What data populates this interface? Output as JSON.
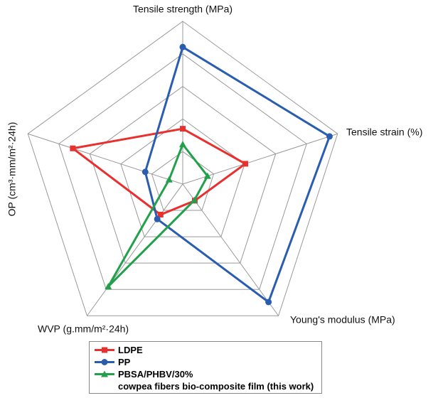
{
  "chart_data": {
    "type": "radar",
    "axes": [
      "Tensile strength (MPa)",
      "Tensile strain (%)",
      "Young's modulus (MPa)",
      "WVP (g.mm/m²·24h)",
      "OP (cm³·mm/m²·24h)"
    ],
    "rlim": [
      0,
      5
    ],
    "rticks": [
      1,
      2,
      3,
      4,
      5
    ],
    "grid": true,
    "series": [
      {
        "name": "LDPE",
        "color": "#e8302f",
        "marker": "square",
        "values": [
          1.7,
          2.02,
          0.63,
          1.16,
          3.55
        ]
      },
      {
        "name": "PP",
        "color": "#2a5db0",
        "marker": "circle",
        "values": [
          4.21,
          4.74,
          4.48,
          1.33,
          1.21
        ]
      },
      {
        "name": "PBSA/PHBV/30%\ncowpea fibers bio-composite film (this work)",
        "color": "#22a04b",
        "marker": "triangle",
        "values": [
          1.22,
          0.8,
          0.61,
          3.89,
          0.44
        ]
      }
    ]
  }
}
